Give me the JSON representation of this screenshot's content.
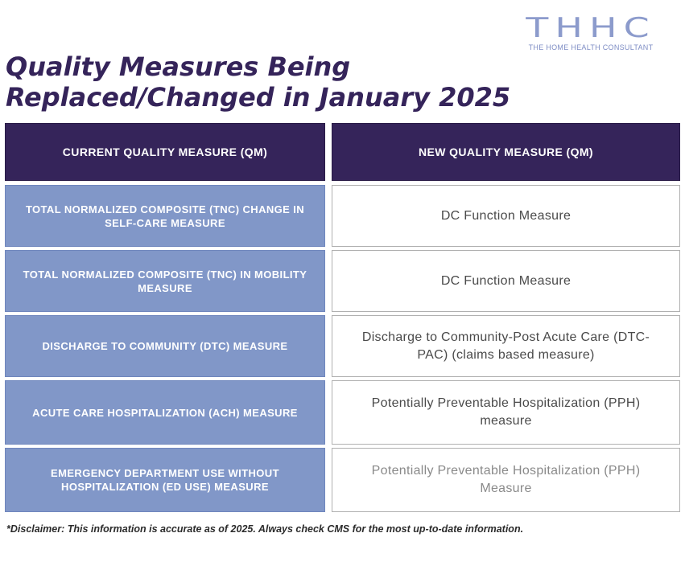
{
  "logo": {
    "mark": "THHC",
    "subtitle": "THE HOME HEALTH CONSULTANT"
  },
  "title": {
    "line1": "Quality Measures Being",
    "line2": "Replaced/Changed in January 2025"
  },
  "table": {
    "headers": [
      "CURRENT QUALITY MEASURE (QM)",
      "NEW QUALITY MEASURE (QM)"
    ],
    "rows": [
      {
        "current": "TOTAL NORMALIZED COMPOSITE (TNC) CHANGE IN SELF-CARE MEASURE",
        "new": "DC Function Measure"
      },
      {
        "current": "TOTAL NORMALIZED COMPOSITE (TNC) IN MOBILITY MEASURE",
        "new": "DC Function Measure"
      },
      {
        "current": "DISCHARGE TO COMMUNITY (DTC) MEASURE",
        "new": "Discharge to Community-Post Acute Care (DTC-PAC) (claims based measure)"
      },
      {
        "current": "ACUTE CARE HOSPITALIZATION (ACH) MEASURE",
        "new": "Potentially Preventable Hospitalization (PPH) measure"
      },
      {
        "current": "EMERGENCY DEPARTMENT USE WITHOUT HOSPITALIZATION (ED USE) MEASURE",
        "new": "Potentially Preventable Hospitalization (PPH) Measure"
      }
    ]
  },
  "disclaimer": "*Disclaimer: This information is accurate as of 2025. Always check CMS for the most up-to-date information.",
  "colors": {
    "header_bg": "#35245a",
    "left_cell_bg": "#8197c8",
    "logo": "#8c9bcc"
  }
}
